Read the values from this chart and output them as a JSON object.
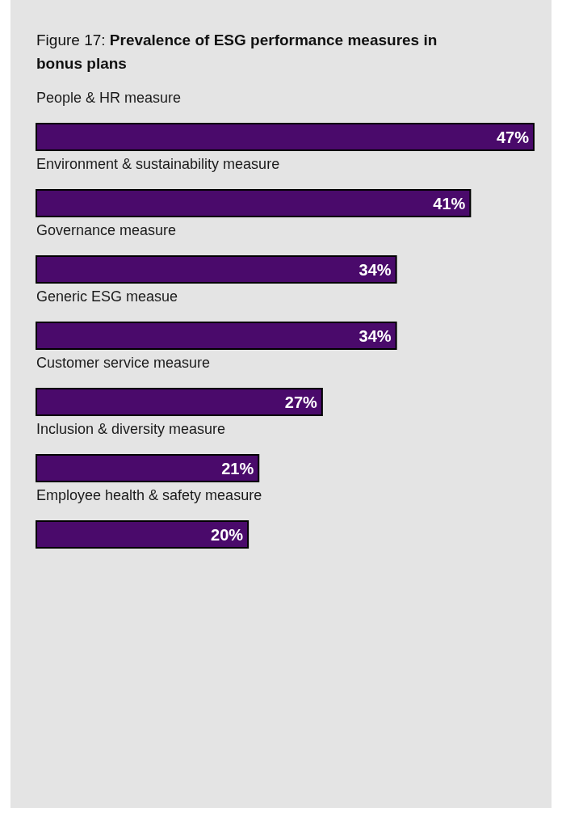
{
  "chart_data": {
    "type": "bar",
    "orientation": "horizontal",
    "title": "Figure 17: Prevalence of ESG performance measures in bonus plans",
    "categories": [
      "People & HR measure",
      "Environment & sustainability measure",
      "Governance measure",
      "Generic ESG measue",
      "Customer service measure",
      "Inclusion & diversity measure",
      "Employee health & safety measure"
    ],
    "values": [
      47,
      41,
      34,
      34,
      27,
      21,
      20
    ],
    "value_labels": [
      "47%",
      "41%",
      "34%",
      "34%",
      "27%",
      "21%",
      "20%"
    ],
    "color": "#4a0a6b"
  }
}
